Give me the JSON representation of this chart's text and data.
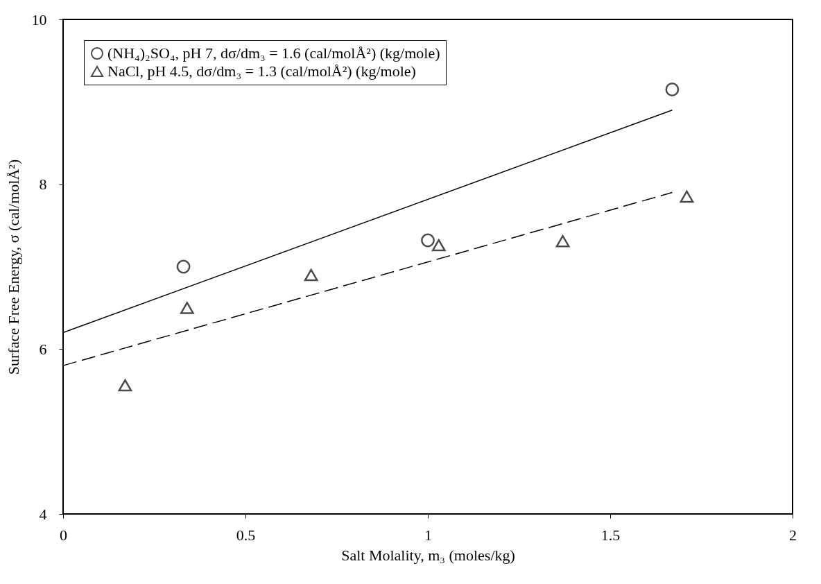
{
  "chart_data": {
    "type": "scatter",
    "xlabel": "Salt Molality, m₃ (moles/kg)",
    "ylabel": "Surface Free Energy, σ (cal/molÅ²)",
    "xlim": [
      0,
      2
    ],
    "xticks": [
      0,
      0.5,
      1,
      1.5,
      2
    ],
    "ylim": [
      4,
      10
    ],
    "yticks": [
      4,
      6,
      8,
      10
    ],
    "grid": false,
    "legend": "top left",
    "series": [
      {
        "name": "(NH₄)₂SO₄, pH 7, dσ/dm₃ = 1.6 (cal/molÅ²) (kg/mole)",
        "marker": "circle",
        "color": "#000000",
        "x": [
          0.33,
          1.0,
          1.67
        ],
        "values": [
          7.0,
          7.32,
          9.15
        ]
      },
      {
        "name": "NaCl, pH 4.5, dσ/dm₃ = 1.3 (cal/molÅ²) (kg/mole)",
        "marker": "triangle",
        "color": "#000000",
        "x": [
          0.17,
          0.34,
          0.68,
          1.03,
          1.37,
          1.71
        ],
        "values": [
          5.56,
          6.5,
          6.9,
          7.26,
          7.31,
          7.85
        ]
      },
      {
        "type": "line",
        "marker": "none",
        "line_style": "solid",
        "color": "#000000",
        "x": [
          0,
          1.67
        ],
        "values": [
          6.2,
          8.9
        ]
      },
      {
        "type": "line",
        "marker": "none",
        "line_style": "dashed",
        "color": "#000000",
        "x": [
          0,
          1.67
        ],
        "values": [
          5.8,
          7.9
        ]
      }
    ]
  }
}
